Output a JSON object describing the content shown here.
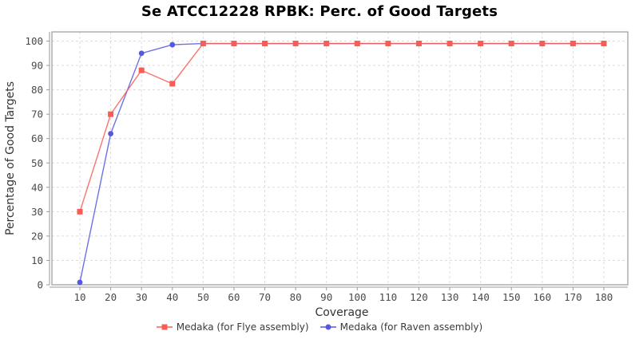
{
  "chart_data": {
    "type": "line",
    "title": "Se ATCC12228 RPBK: Perc. of Good Targets",
    "xlabel": "Coverage",
    "ylabel": "Percentage of Good Targets",
    "xlim": [
      10,
      180
    ],
    "ylim": [
      0,
      100
    ],
    "xticks": [
      10,
      20,
      30,
      40,
      50,
      60,
      70,
      80,
      90,
      100,
      110,
      120,
      130,
      140,
      150,
      160,
      170,
      180
    ],
    "yticks": [
      0,
      10,
      20,
      30,
      40,
      50,
      60,
      70,
      80,
      90,
      100
    ],
    "grid": true,
    "grid_style": "dashed",
    "legend_position": "bottom",
    "x": [
      10,
      20,
      30,
      40,
      50,
      60,
      70,
      80,
      90,
      100,
      110,
      120,
      130,
      140,
      150,
      160,
      170,
      180
    ],
    "series": [
      {
        "name": "Medaka (for Flye assembly)",
        "color": "#f85c54",
        "marker": "square",
        "values": [
          30,
          70,
          88,
          82.5,
          99,
          99,
          99,
          99,
          99,
          99,
          99,
          99,
          99,
          99,
          99,
          99,
          99,
          99
        ]
      },
      {
        "name": "Medaka (for Raven assembly)",
        "color": "#5558e0",
        "marker": "circle",
        "values": [
          1,
          62,
          95,
          98.5,
          99,
          99,
          99,
          99,
          99,
          99,
          99,
          99,
          99,
          99,
          99,
          99,
          99,
          99
        ]
      }
    ]
  }
}
